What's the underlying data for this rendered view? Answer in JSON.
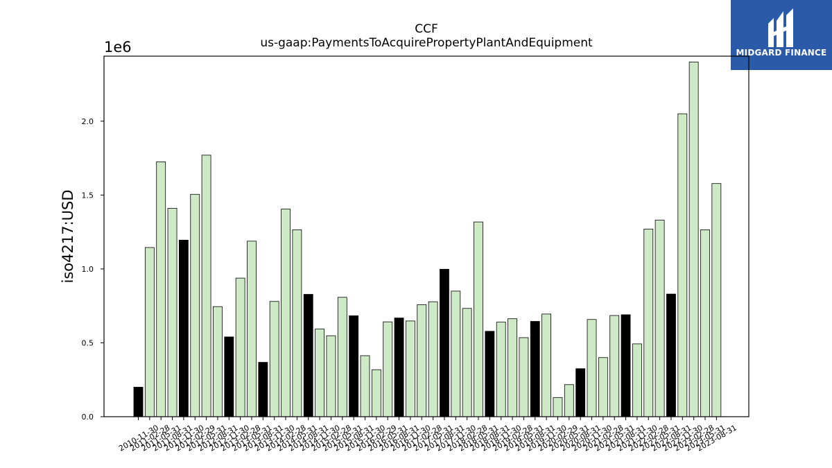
{
  "title": "CCF",
  "subtitle": "us-gaap:PaymentsToAcquirePropertyPlantAndEquipment",
  "ylabel": "iso4217:USD",
  "y_scale_label": "1e6",
  "logo": {
    "text": "MIDGARD FINANCE",
    "icon": "midgard-logo-icon",
    "color": "#2b5aa8"
  },
  "chart_data": {
    "type": "bar",
    "title": "CCF",
    "subtitle": "us-gaap:PaymentsToAcquirePropertyPlantAndEquipment",
    "xlabel": "",
    "ylabel": "iso4217:USD",
    "ylim": [
      0,
      2440000
    ],
    "yticks": [
      0,
      500000,
      1000000,
      1500000,
      2000000
    ],
    "ytick_labels": [
      "0.0",
      "0.5",
      "1.0",
      "1.5",
      "2.0"
    ],
    "grid": false,
    "colors": {
      "annual": "#000000",
      "quarterly": "#cde9c6",
      "edge": "#000000"
    },
    "categories": [
      "2010-11-30",
      "2011-02-28",
      "2011-05-31",
      "2011-08-31",
      "2011-11-30",
      "2012-02-29",
      "2012-05-31",
      "2012-08-31",
      "2012-11-30",
      "2013-02-28",
      "2013-05-31",
      "2013-08-31",
      "2013-11-30",
      "2014-02-28",
      "2014-05-31",
      "2014-08-31",
      "2014-11-30",
      "2015-02-28",
      "2015-05-31",
      "2015-08-31",
      "2015-11-30",
      "2016-02-29",
      "2016-05-31",
      "2016-08-31",
      "2016-11-30",
      "2017-02-28",
      "2017-05-31",
      "2017-08-31",
      "2017-11-30",
      "2018-02-28",
      "2018-05-31",
      "2018-08-31",
      "2018-11-30",
      "2019-02-28",
      "2019-05-31",
      "2019-08-31",
      "2019-11-30",
      "2020-02-29",
      "2020-05-31",
      "2020-08-31",
      "2020-11-30",
      "2021-02-28",
      "2021-05-31",
      "2021-08-31",
      "2021-11-30",
      "2022-02-28",
      "2022-05-31",
      "2022-08-31",
      "2022-11-30",
      "2023-02-28",
      "2023-05-31",
      "2023-08-31"
    ],
    "values": [
      200000,
      1145000,
      1725000,
      1410000,
      1195000,
      1505000,
      1770000,
      745000,
      540000,
      938000,
      1188000,
      368000,
      780000,
      1405000,
      1265000,
      828000,
      593000,
      548000,
      808000,
      683000,
      413000,
      318000,
      642000,
      668000,
      648000,
      758000,
      778000,
      998000,
      850000,
      733000,
      1318000,
      578000,
      640000,
      663000,
      535000,
      645000,
      695000,
      130000,
      217000,
      325000,
      658000,
      400000,
      685000,
      690000,
      493000,
      1270000,
      1330000,
      830000,
      2050000,
      2400000,
      1265000,
      1578000
    ],
    "annual": [
      true,
      false,
      false,
      false,
      true,
      false,
      false,
      false,
      true,
      false,
      false,
      true,
      false,
      false,
      false,
      true,
      false,
      false,
      false,
      true,
      false,
      false,
      false,
      true,
      false,
      false,
      false,
      true,
      false,
      false,
      false,
      true,
      false,
      false,
      false,
      true,
      false,
      false,
      false,
      true,
      false,
      false,
      false,
      true,
      false,
      false,
      false,
      true,
      false,
      false,
      false,
      false
    ]
  }
}
